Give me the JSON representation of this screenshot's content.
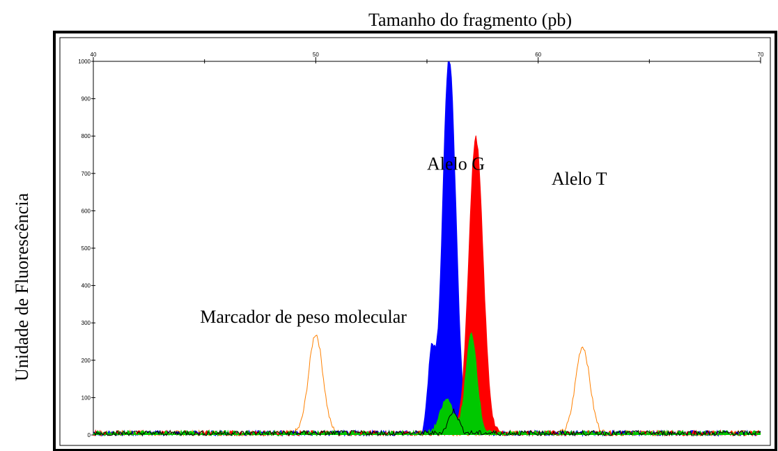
{
  "chart_data": {
    "type": "line",
    "title": "",
    "xlabel": "Tamanho do fragmento (pb)",
    "ylabel": "Unidade de Fluorescência",
    "xlim": [
      40,
      70
    ],
    "ylim": [
      0,
      1000
    ],
    "x_ticks": [
      40,
      50,
      60,
      70
    ],
    "y_ticks": [
      0,
      100,
      200,
      300,
      400,
      500,
      600,
      700,
      800,
      900,
      1000
    ],
    "grid": false,
    "legend": "none",
    "series": [
      {
        "color": "#ff8000",
        "filled": false,
        "peaks": [
          [
            50.0,
            265,
            0.32
          ],
          [
            62.0,
            232,
            0.32
          ]
        ]
      },
      {
        "color": "#0000ff",
        "filled": true,
        "peaks": [
          [
            55.2,
            210,
            0.16
          ],
          [
            56.0,
            1000,
            0.3
          ]
        ]
      },
      {
        "color": "#ff0000",
        "filled": true,
        "peaks": [
          [
            57.2,
            790,
            0.32
          ]
        ]
      },
      {
        "color": "#00c800",
        "filled": true,
        "peaks": [
          [
            55.9,
            90,
            0.3
          ],
          [
            57.0,
            265,
            0.25
          ]
        ]
      },
      {
        "color": "#000000",
        "filled": false,
        "peaks": [
          [
            56.2,
            60,
            0.22
          ]
        ]
      }
    ],
    "annotations": [
      {
        "text": "Marcador de peso molecular",
        "x": 44.8,
        "y": 300
      },
      {
        "text": "Alelo G",
        "x": 55.0,
        "y": 710
      },
      {
        "text": "Alelo T",
        "x": 60.6,
        "y": 670
      }
    ]
  }
}
